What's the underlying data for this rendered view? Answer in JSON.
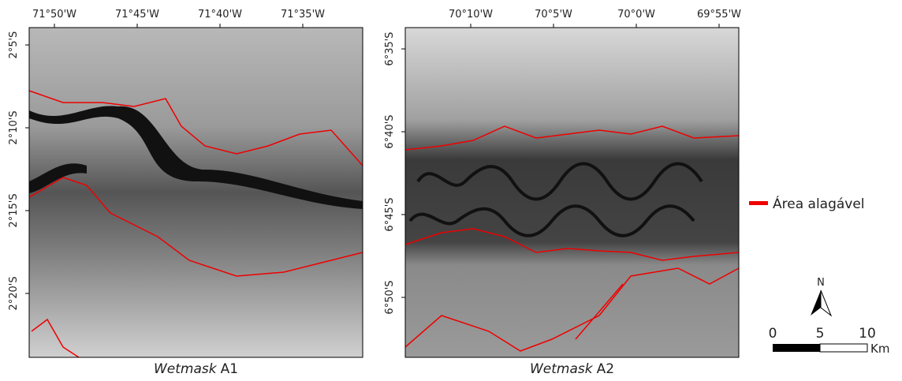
{
  "panels": [
    {
      "caption_italic": "Wetmask",
      "caption_rest": "A1",
      "top_ticks": [
        "71°50'W",
        "71°45'W",
        "71°40'W",
        "71°35'W"
      ],
      "left_ticks": [
        "2°5'S",
        "2°10'S",
        "2°15'S",
        "2°20'S"
      ]
    },
    {
      "caption_italic": "Wetmask",
      "caption_rest": "A2",
      "top_ticks": [
        "70°10'W",
        "70°5'W",
        "70°0'W",
        "69°55'W"
      ],
      "left_ticks": [
        "6°35'S",
        "6°40'S",
        "6°45'S",
        "6°50'S"
      ]
    }
  ],
  "legend": {
    "label": "Área alagável"
  },
  "north_arrow": {
    "label": "N"
  },
  "scale_bar": {
    "labels": [
      0,
      5,
      10
    ],
    "unit": "Km"
  }
}
